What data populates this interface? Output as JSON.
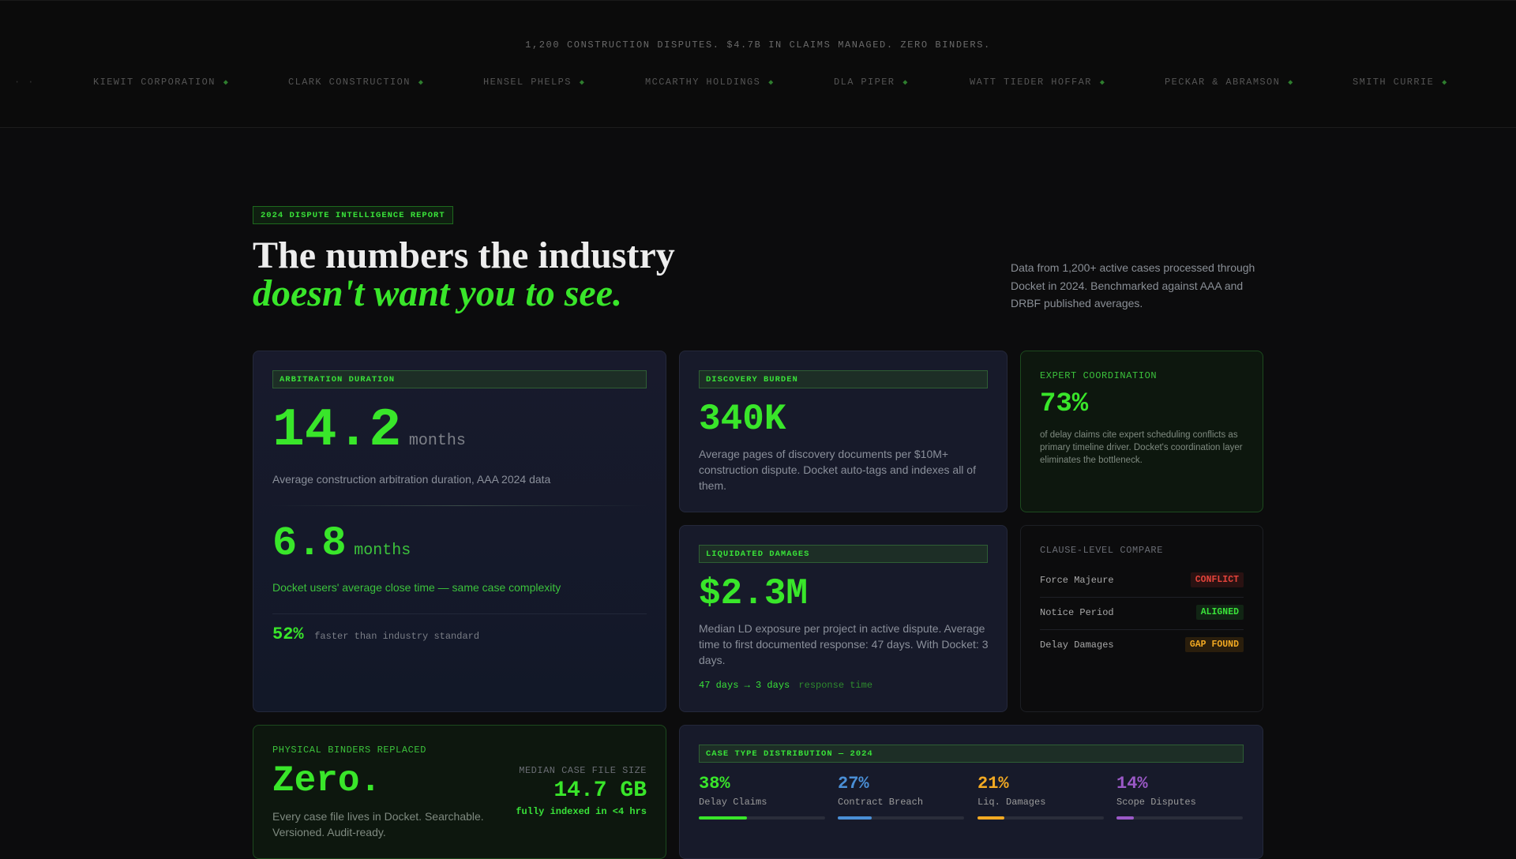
{
  "top": {
    "tagline": "1,200 CONSTRUCTION DISPUTES. $4.7B IN CLAIMS MANAGED. ZERO BINDERS.",
    "logos": [
      {
        "label": "KIEWIT CORPORATION",
        "dot": "◆"
      },
      {
        "label": "CLARK CONSTRUCTION",
        "dot": "◆"
      },
      {
        "label": "HENSEL PHELPS",
        "dot": "◆"
      },
      {
        "label": "MCCARTHY HOLDINGS",
        "dot": "◆"
      },
      {
        "label": "DLA PIPER",
        "dot": "◆"
      },
      {
        "label": "WATT TIEDER HOFFAR",
        "dot": "◆"
      },
      {
        "label": "PECKAR & ABRAMSON",
        "dot": "◆"
      },
      {
        "label": "SMITH CURRIE",
        "dot": "◆"
      }
    ]
  },
  "hero": {
    "badge": "2024 DISPUTE INTELLIGENCE REPORT",
    "headline_line1": "The numbers the industry",
    "headline_line2": "doesn't want you to see.",
    "description": "Data from 1,200+ active cases processed through Docket in 2024. Benchmarked against AAA and DRBF published averages."
  },
  "arbitration": {
    "label": "ARBITRATION DURATION",
    "industry_value": "14.2",
    "industry_unit": "months",
    "industry_desc": "Average construction arbitration duration, AAA 2024 data",
    "docket_value": "6.8",
    "docket_unit": "months",
    "docket_desc": "Docket users' average close time — same case complexity",
    "faster_pct": "52%",
    "faster_text": "faster than industry standard"
  },
  "discovery": {
    "label": "DISCOVERY BURDEN",
    "value": "340K",
    "desc": "Average pages of discovery documents per $10M+ construction dispute. Docket auto-tags and indexes all of them."
  },
  "expert": {
    "label": "EXPERT COORDINATION",
    "value": "73%",
    "desc": "of delay claims cite expert scheduling conflicts as primary timeline driver. Docket's coordination layer eliminates the bottleneck."
  },
  "liquidated": {
    "label": "LIQUIDATED DAMAGES",
    "value": "$2.3M",
    "desc": "Median LD exposure per project in active dispute. Average time to first documented response: 47 days. With Docket: 3 days.",
    "compare_text": "47 days → 3 days",
    "compare_suffix": "response time"
  },
  "clause": {
    "label": "CLAUSE-LEVEL COMPARE",
    "rows": [
      {
        "name": "Force Majeure",
        "status": "CONFLICT"
      },
      {
        "name": "Notice Period",
        "status": "ALIGNED"
      },
      {
        "name": "Delay Damages",
        "status": "GAP FOUND"
      }
    ]
  },
  "binders": {
    "label": "PHYSICAL BINDERS REPLACED",
    "value": "Zero.",
    "desc": "Every case file lives in Docket. Searchable. Versioned. Audit-ready.",
    "size_label": "MEDIAN CASE FILE SIZE",
    "size_value": "14.7 GB",
    "size_note": "fully indexed in <4 hrs"
  },
  "distribution": {
    "label": "CASE TYPE DISTRIBUTION — 2024",
    "items": [
      {
        "pct": "38%",
        "name": "Delay Claims",
        "fraction": 0.38,
        "color": "#39e62a"
      },
      {
        "pct": "27%",
        "name": "Contract Breach",
        "fraction": 0.27,
        "color": "#4a8fd6"
      },
      {
        "pct": "21%",
        "name": "Liq. Damages",
        "fraction": 0.21,
        "color": "#f2a922"
      },
      {
        "pct": "14%",
        "name": "Scope Disputes",
        "fraction": 0.14,
        "color": "#9b59c7"
      }
    ]
  },
  "colors": {
    "accent_green": "#39e62a",
    "conflict_red": "#e5433a",
    "aligned_green": "#39e239",
    "gap_amber": "#f2a922"
  }
}
